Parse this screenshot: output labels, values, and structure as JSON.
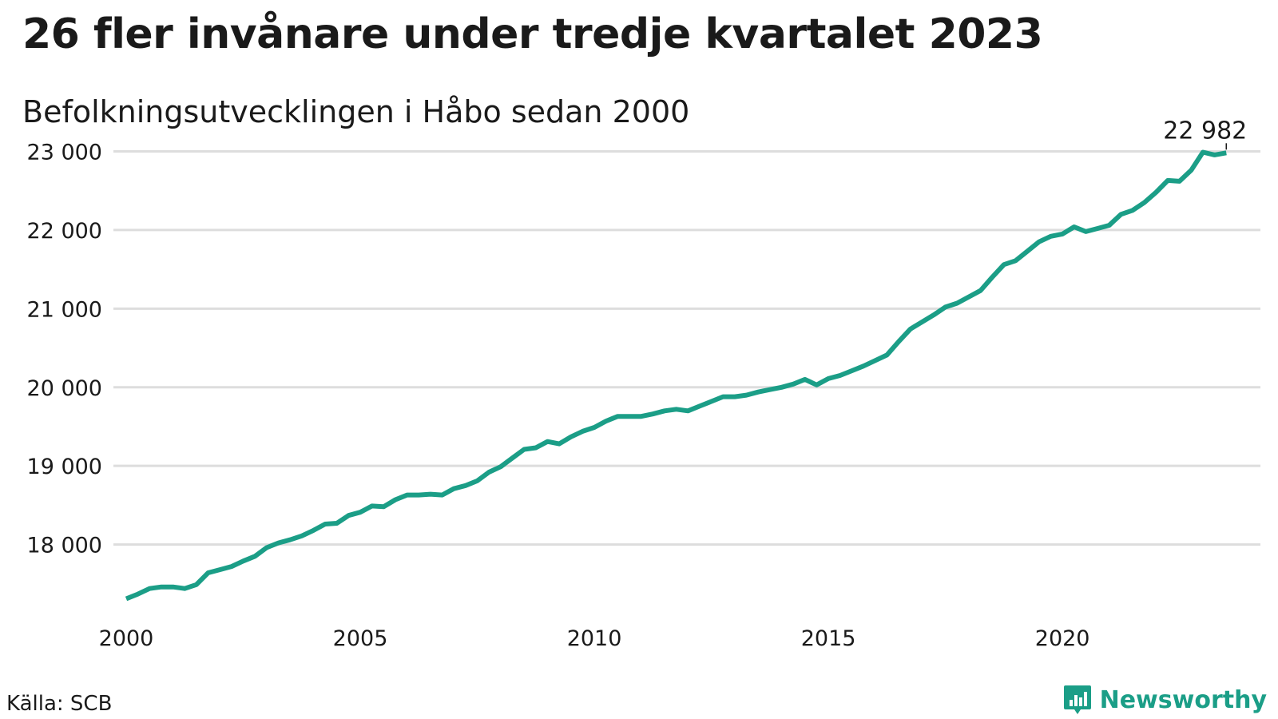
{
  "title": "26 fler invånare under tredje kvartalet 2023",
  "subtitle": "Befolkningsutvecklingen i Håbo sedan 2000",
  "source": "Källa: SCB",
  "brand": {
    "name": "Newsworthy",
    "icon": "newsworthy-logo-icon"
  },
  "colors": {
    "line": "#1b9e87",
    "grid": "#dddddd",
    "text": "#1a1a1a"
  },
  "chart_data": {
    "type": "line",
    "title": "26 fler invånare under tredje kvartalet 2023",
    "subtitle": "Befolkningsutvecklingen i Håbo sedan 2000",
    "xlabel": "",
    "ylabel": "",
    "grid": true,
    "legend": "none",
    "xlim": [
      2000,
      2024.4
    ],
    "ylim": [
      17000,
      23300
    ],
    "x_ticks": [
      2000,
      2005,
      2010,
      2015,
      2020
    ],
    "x_tick_labels": [
      "2000",
      "2005",
      "2010",
      "2015",
      "2020"
    ],
    "y_ticks": [
      18000,
      19000,
      20000,
      21000,
      22000,
      23000
    ],
    "y_tick_labels": [
      "18 000",
      "19 000",
      "20 000",
      "21 000",
      "22 000",
      "23 000"
    ],
    "last_value_label": "22 982",
    "series": [
      {
        "x": [
          2000.0,
          2000.25,
          2000.5,
          2000.75,
          2001.0,
          2001.25,
          2001.5,
          2001.75,
          2002.0,
          2002.25,
          2002.5,
          2002.75,
          2003.0,
          2003.25,
          2003.5,
          2003.75,
          2004.0,
          2004.25,
          2004.5,
          2004.75,
          2005.0,
          2005.25,
          2005.5,
          2005.75,
          2006.0,
          2006.25,
          2006.5,
          2006.75,
          2007.0,
          2007.25,
          2007.5,
          2007.75,
          2008.0,
          2008.25,
          2008.5,
          2008.75,
          2009.0,
          2009.25,
          2009.5,
          2009.75,
          2010.0,
          2010.25,
          2010.5,
          2010.75,
          2011.0,
          2011.25,
          2011.5,
          2011.75,
          2012.0,
          2012.25,
          2012.5,
          2012.75,
          2013.0,
          2013.25,
          2013.5,
          2013.75,
          2014.0,
          2014.25,
          2014.5,
          2014.75,
          2015.0,
          2015.25,
          2015.5,
          2015.75,
          2016.0,
          2016.25,
          2016.5,
          2016.75,
          2017.0,
          2017.25,
          2017.5,
          2017.75,
          2018.0,
          2018.25,
          2018.5,
          2018.75,
          2019.0,
          2019.25,
          2019.5,
          2019.75,
          2020.0,
          2020.25,
          2020.5,
          2020.75,
          2021.0,
          2021.25,
          2021.5,
          2021.75,
          2022.0,
          2022.25,
          2022.5,
          2022.75,
          2023.0,
          2023.25,
          2023.5
        ],
        "values": [
          17310,
          17370,
          17440,
          17460,
          17460,
          17440,
          17490,
          17640,
          17680,
          17720,
          17790,
          17850,
          17960,
          18020,
          18060,
          18110,
          18180,
          18260,
          18270,
          18370,
          18410,
          18490,
          18480,
          18570,
          18630,
          18630,
          18640,
          18630,
          18710,
          18750,
          18810,
          18920,
          18990,
          19100,
          19210,
          19230,
          19310,
          19280,
          19370,
          19440,
          19490,
          19570,
          19630,
          19630,
          19630,
          19660,
          19700,
          19720,
          19700,
          19760,
          19820,
          19880,
          19880,
          19900,
          19940,
          19970,
          20000,
          20040,
          20100,
          20030,
          20110,
          20150,
          20210,
          20270,
          20340,
          20410,
          20580,
          20740,
          20830,
          20920,
          21020,
          21070,
          21150,
          21230,
          21400,
          21560,
          21610,
          21730,
          21850,
          21920,
          21950,
          22040,
          21980,
          22020,
          22060,
          22200,
          22250,
          22350,
          22480,
          22630,
          22620,
          22760,
          22990,
          22956,
          22982
        ]
      }
    ]
  }
}
